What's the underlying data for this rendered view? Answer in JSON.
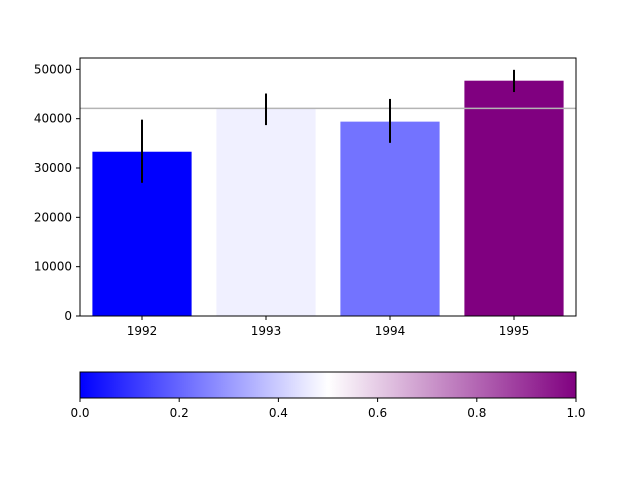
{
  "chart_data": {
    "type": "bar",
    "categories": [
      "1992",
      "1993",
      "1994",
      "1995"
    ],
    "values": [
      33300,
      42100,
      39400,
      47700
    ],
    "errors": [
      [
        27000,
        39800
      ],
      [
        38700,
        45100
      ],
      [
        35100,
        44000
      ],
      [
        45400,
        49900
      ]
    ],
    "bar_colors": [
      "#0000ff",
      "#f0f0ff",
      "#7373ff",
      "#800080"
    ],
    "error_color": "#000000",
    "reference_line": {
      "value": 42100,
      "color": "#b4b4b4"
    },
    "ylim": [
      0,
      52300
    ],
    "yticks": [
      0,
      10000,
      20000,
      30000,
      40000,
      50000
    ],
    "ytick_labels": [
      "0",
      "10000",
      "20000",
      "30000",
      "40000",
      "50000"
    ],
    "title": "",
    "xlabel": "",
    "ylabel": "",
    "grid": false,
    "colorbar": {
      "range": [
        0,
        1
      ],
      "ticks": [
        0,
        0.2,
        0.4,
        0.6,
        0.8,
        1.0
      ],
      "tick_labels": [
        "0.0",
        "0.2",
        "0.4",
        "0.6",
        "0.8",
        "1.0"
      ],
      "colors": [
        "#0000ff",
        "#ffffff",
        "#800080"
      ],
      "orientation": "horizontal"
    }
  }
}
